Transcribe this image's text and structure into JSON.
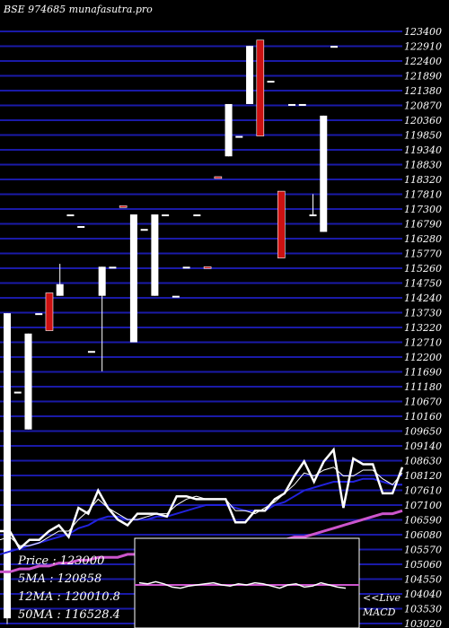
{
  "chart_data": {
    "type": "candlestick",
    "title": "BSE 974685 munafasutra.pro",
    "price_axis_labels": [
      "123400",
      "122910",
      "122400",
      "121890",
      "121380",
      "120870",
      "120360",
      "119850",
      "119340",
      "118830",
      "118320",
      "117810",
      "117300",
      "116790",
      "116280",
      "115770",
      "115260",
      "114750",
      "114240",
      "113730",
      "113220",
      "112710",
      "112200",
      "111690",
      "111180",
      "110670",
      "110160",
      "109650",
      "109140",
      "108630",
      "108120",
      "107610",
      "107100",
      "106590",
      "106080",
      "105570",
      "105060",
      "104550",
      "104040",
      "103530",
      "103020"
    ],
    "ylim": [
      103020,
      123400
    ],
    "candles": [
      {
        "o": 113700,
        "h": 113700,
        "l": 103000,
        "c": 103200,
        "color": "white"
      },
      {
        "o": 111000,
        "h": 111000,
        "l": 111000,
        "c": 111000,
        "color": "white"
      },
      {
        "o": 113000,
        "h": 113000,
        "l": 109700,
        "c": 109700,
        "color": "white"
      },
      {
        "o": 113700,
        "h": 113700,
        "l": 113700,
        "c": 113700,
        "color": "white"
      },
      {
        "o": 113100,
        "h": 114400,
        "l": 113100,
        "c": 114400,
        "color": "red"
      },
      {
        "o": 114700,
        "h": 115400,
        "l": 114300,
        "c": 114300,
        "color": "white"
      },
      {
        "o": 117100,
        "h": 117100,
        "l": 117100,
        "c": 117100,
        "color": "white"
      },
      {
        "o": 116700,
        "h": 116700,
        "l": 116700,
        "c": 116700,
        "color": "white"
      },
      {
        "o": 112400,
        "h": 112400,
        "l": 112400,
        "c": 112400,
        "color": "white"
      },
      {
        "o": 115300,
        "h": 115300,
        "l": 111700,
        "c": 114300,
        "color": "white"
      },
      {
        "o": 115300,
        "h": 115300,
        "l": 115300,
        "c": 115300,
        "color": "white"
      },
      {
        "o": 117400,
        "h": 117400,
        "l": 117400,
        "c": 117400,
        "color": "red"
      },
      {
        "o": 117100,
        "h": 117100,
        "l": 112700,
        "c": 112700,
        "color": "white"
      },
      {
        "o": 116600,
        "h": 116600,
        "l": 116600,
        "c": 116600,
        "color": "white"
      },
      {
        "o": 117100,
        "h": 117100,
        "l": 114300,
        "c": 114300,
        "color": "white"
      },
      {
        "o": 117100,
        "h": 117100,
        "l": 117100,
        "c": 117100,
        "color": "white"
      },
      {
        "o": 114300,
        "h": 114300,
        "l": 114300,
        "c": 114300,
        "color": "white"
      },
      {
        "o": 115300,
        "h": 115300,
        "l": 115300,
        "c": 115300,
        "color": "white"
      },
      {
        "o": 117100,
        "h": 117100,
        "l": 117100,
        "c": 117100,
        "color": "white"
      },
      {
        "o": 115300,
        "h": 115300,
        "l": 115300,
        "c": 115300,
        "color": "red"
      },
      {
        "o": 118400,
        "h": 118400,
        "l": 118400,
        "c": 118400,
        "color": "red"
      },
      {
        "o": 120900,
        "h": 120900,
        "l": 119100,
        "c": 119100,
        "color": "white"
      },
      {
        "o": 119800,
        "h": 119800,
        "l": 119800,
        "c": 119800,
        "color": "white"
      },
      {
        "o": 120900,
        "h": 122900,
        "l": 120900,
        "c": 122900,
        "color": "white"
      },
      {
        "o": 123100,
        "h": 123100,
        "l": 119800,
        "c": 119800,
        "color": "red"
      },
      {
        "o": 121700,
        "h": 121700,
        "l": 121700,
        "c": 121700,
        "color": "white"
      },
      {
        "o": 117900,
        "h": 117900,
        "l": 115600,
        "c": 115600,
        "color": "red"
      },
      {
        "o": 120900,
        "h": 120900,
        "l": 120900,
        "c": 120900,
        "color": "white"
      },
      {
        "o": 120900,
        "h": 120900,
        "l": 120900,
        "c": 120900,
        "color": "white"
      },
      {
        "o": 117100,
        "h": 117800,
        "l": 117100,
        "c": 117100,
        "color": "white"
      },
      {
        "o": 120500,
        "h": 120500,
        "l": 116500,
        "c": 116500,
        "color": "white"
      },
      {
        "o": 122900,
        "h": 122900,
        "l": 122900,
        "c": 122900,
        "color": "white"
      }
    ],
    "price_line": [
      106200,
      106200,
      105600,
      105900,
      105900,
      106200,
      106400,
      106000,
      107000,
      106800,
      107600,
      107000,
      106600,
      106400,
      106800,
      106800,
      106800,
      106700,
      107400,
      107400,
      107300,
      107300,
      107300,
      107300,
      106500,
      106500,
      106900,
      106900,
      107300,
      107500,
      108100,
      108600,
      107900,
      108600,
      109000,
      107000,
      108700,
      108500,
      108500,
      107500,
      107500,
      108400
    ],
    "ma5_line": [
      105900,
      106000,
      105700,
      105700,
      105800,
      106000,
      106200,
      106200,
      106600,
      106900,
      107300,
      107000,
      106800,
      106600,
      106600,
      106700,
      106800,
      106800,
      107100,
      107300,
      107400,
      107300,
      107300,
      107300,
      106900,
      106900,
      106800,
      107000,
      107200,
      107500,
      107800,
      108200,
      108100,
      108300,
      108400,
      108100,
      108100,
      108300,
      108300,
      108000,
      107800,
      108200
    ],
    "ma12_line": [
      105400,
      105500,
      105600,
      105700,
      105800,
      105900,
      106000,
      106100,
      106300,
      106400,
      106600,
      106700,
      106700,
      106600,
      106600,
      106600,
      106700,
      106700,
      106800,
      106900,
      107000,
      107100,
      107100,
      107100,
      107000,
      106900,
      106900,
      106900,
      107100,
      107200,
      107400,
      107600,
      107700,
      107800,
      107900,
      107900,
      107900,
      108000,
      108000,
      107900,
      107800,
      107800
    ],
    "ma50_line": [
      104800,
      104800,
      104900,
      104900,
      105000,
      105000,
      105100,
      105100,
      105200,
      105200,
      105300,
      105300,
      105300,
      105400,
      105400,
      105400,
      105500,
      105500,
      105500,
      105600,
      105600,
      105600,
      105700,
      105700,
      105700,
      105800,
      105800,
      105800,
      105900,
      105900,
      106000,
      106000,
      106100,
      106200,
      106300,
      106400,
      106500,
      106600,
      106700,
      106800,
      106800,
      106900
    ],
    "macd_line": [
      0.2,
      0.1,
      0.3,
      0.1,
      -0.2,
      -0.3,
      -0.1,
      0.0,
      0.1,
      0.2,
      0.0,
      -0.1,
      0.1,
      0.0,
      0.2,
      0.1,
      -0.1,
      -0.3,
      0.0,
      0.1,
      -0.2,
      -0.1,
      0.2,
      0.0,
      -0.2,
      -0.3
    ],
    "legend": {
      "price": "Price   : 123000",
      "ma5": "5MA : 120858",
      "ma12": "12MA : 120010.8",
      "ma50": "50MA : 116528.4"
    },
    "macd_label": "<<Live\nMACD",
    "colors": {
      "grid": "#1a1aa8",
      "candle_up": "#ffffff",
      "candle_down": "#cc1111",
      "price": "#ffffff",
      "ma5": "#ffffff",
      "ma12": "#2222dd",
      "ma50": "#cc55cc",
      "macd_signal": "#cc55cc"
    }
  }
}
